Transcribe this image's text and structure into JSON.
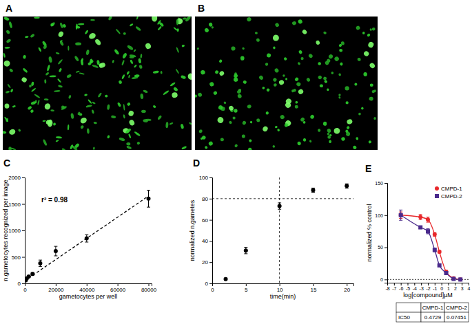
{
  "chart_data": [
    {
      "label": "A",
      "type": "image"
    },
    {
      "label": "B",
      "type": "image"
    },
    {
      "label": "C",
      "type": "scatter",
      "x_label": "gametocytes per well",
      "y_label": "n.gametocytes recognized per image",
      "annotation": "r² = 0.98",
      "xlim": [
        0,
        82000
      ],
      "xticks": [
        0,
        20000,
        40000,
        60000,
        80000
      ],
      "ylim": [
        0,
        2000
      ],
      "yticks": [
        0,
        500,
        1000,
        1500,
        2000
      ],
      "series": [
        {
          "type": "scatter",
          "color": "#000000",
          "marker": "circle",
          "x": [
            625,
            1250,
            2500,
            5000,
            10000,
            20000,
            40000,
            80000
          ],
          "values": [
            60,
            95,
            130,
            180,
            380,
            610,
            850,
            1600
          ],
          "errors": [
            10,
            15,
            20,
            25,
            60,
            90,
            70,
            160
          ]
        },
        {
          "type": "line",
          "color": "#000000",
          "line_style": "dashed",
          "x": [
            0,
            80000
          ],
          "values": [
            50,
            1650
          ]
        }
      ]
    },
    {
      "label": "D",
      "type": "scatter",
      "x_label": "time(min)",
      "y_label": "normalized n.gametes",
      "xlim": [
        0,
        21
      ],
      "xticks": [
        0,
        5,
        10,
        15,
        20
      ],
      "ylim": [
        0,
        100
      ],
      "yticks": [
        0,
        20,
        40,
        60,
        80,
        100
      ],
      "hlines": [
        80
      ],
      "vlines": [
        10
      ],
      "series": [
        {
          "type": "scatter",
          "color": "#000000",
          "marker": "circle",
          "x": [
            2,
            5,
            10,
            15,
            20
          ],
          "values": [
            4,
            31,
            73,
            88,
            92
          ],
          "errors": [
            1,
            3,
            3,
            2,
            2
          ]
        }
      ]
    },
    {
      "label": "E",
      "type": "line",
      "x_label": "log[compound]µM",
      "y_label": "normalized % control",
      "xlim": [
        -8,
        4
      ],
      "xticks": [
        -8,
        -7,
        -6,
        -5,
        -4,
        -3,
        -2,
        -1,
        0,
        1,
        2,
        3,
        4
      ],
      "ylim": [
        -5,
        150
      ],
      "yticks": [
        0,
        50,
        100,
        150
      ],
      "hlines": [
        0
      ],
      "legend": "upper right",
      "series": [
        {
          "name": "CMPD-1",
          "color": "#e8282b",
          "marker": "circle",
          "x": [
            -6,
            -3.1,
            -2,
            -1,
            -0.3,
            0.7,
            1.8,
            2.8
          ],
          "values": [
            100,
            97,
            93,
            70,
            43,
            12,
            2,
            0
          ],
          "errors": [
            5,
            4,
            4,
            3,
            2,
            2,
            2,
            1
          ]
        },
        {
          "name": "CMPD-2",
          "color": "#4a2a8c",
          "marker": "square",
          "x": [
            -6,
            -3.1,
            -2,
            -1,
            -0.3,
            0.7,
            1.8,
            2.8
          ],
          "values": [
            100,
            81,
            75,
            46,
            22,
            10,
            1,
            0
          ],
          "errors": [
            8,
            2,
            4,
            3,
            2,
            2,
            2,
            1
          ]
        }
      ],
      "table": {
        "columns": [
          "CMPD-1",
          "CMPD-2"
        ],
        "row_label": "IC50",
        "values": [
          0.4729,
          0.07451
        ]
      }
    }
  ]
}
